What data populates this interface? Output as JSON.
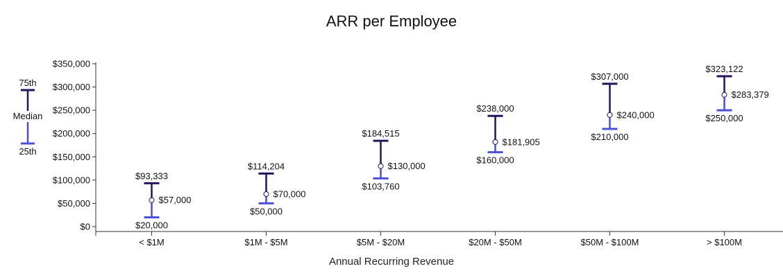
{
  "colors": {
    "upper": "#24125a",
    "lower": "#4a4fd6",
    "axis": "#333333",
    "median_fill": "#ffffff",
    "median_stroke": "#24125a"
  },
  "legend": {
    "upper_label": "75th",
    "median_label": "Median",
    "lower_label": "25th"
  },
  "chart_data": {
    "type": "range",
    "title": "ARR per Employee",
    "xlabel": "Annual Recurring Revenue",
    "ylabel": "",
    "ylim": [
      0,
      350000
    ],
    "y_ticks": [
      0,
      50000,
      100000,
      150000,
      200000,
      250000,
      300000,
      350000
    ],
    "y_tick_labels": [
      "$0",
      "$50,000",
      "$100,000",
      "$150,000",
      "$200,000",
      "$250,000",
      "$300,000",
      "$350,000"
    ],
    "categories": [
      "< $1M",
      "$1M - $5M",
      "$5M - $20M",
      "$20M - $50M",
      "$50M - $100M",
      "> $100M"
    ],
    "series": [
      {
        "name": "75th",
        "values": [
          93333,
          114204,
          184515,
          238000,
          307000,
          323122
        ],
        "labels": [
          "$93,333",
          "$114,204",
          "$184,515",
          "$238,000",
          "$307,000",
          "$323,122"
        ]
      },
      {
        "name": "Median",
        "values": [
          57000,
          70000,
          130000,
          181905,
          240000,
          283379
        ],
        "labels": [
          "$57,000",
          "$70,000",
          "$130,000",
          "$181,905",
          "$240,000",
          "$283,379"
        ]
      },
      {
        "name": "25th",
        "values": [
          20000,
          50000,
          103760,
          160000,
          210000,
          250000
        ],
        "labels": [
          "$20,000",
          "$50,000",
          "$103,760",
          "$160,000",
          "$210,000",
          "$250,000"
        ]
      }
    ],
    "grid": false,
    "legend_position": "left"
  }
}
